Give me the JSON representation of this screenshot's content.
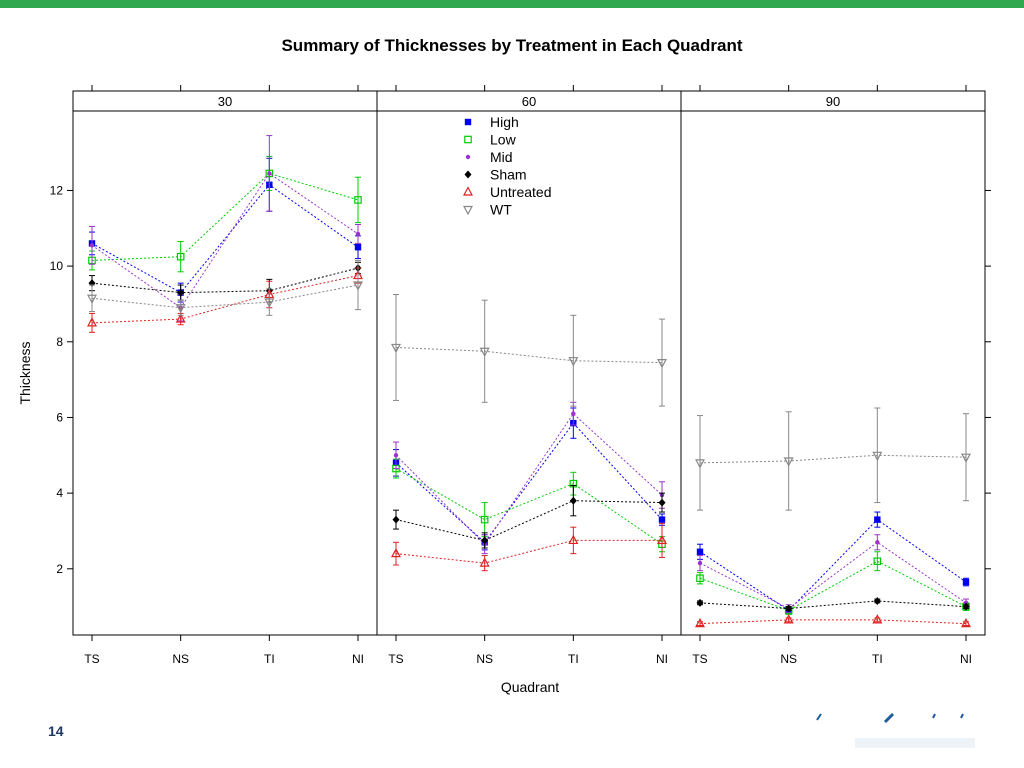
{
  "page": {
    "number": "14",
    "accent_color": "#2fa84f"
  },
  "chart_data": {
    "type": "line",
    "title": "Summary of Thicknesses by Treatment in Each Quadrant",
    "xlabel": "Quadrant",
    "ylabel": "Thickness",
    "categories": [
      "TS",
      "NS",
      "TI",
      "NI"
    ],
    "yticks": [
      2,
      4,
      6,
      8,
      10,
      12
    ],
    "ylim": [
      0.25,
      14.1
    ],
    "grid": false,
    "legend_position": "top, inside the 60 panel",
    "panels": [
      {
        "label": "30",
        "series": [
          {
            "name": "High",
            "color": "#0000ee",
            "marker": "filled-square",
            "values": [
              10.6,
              9.3,
              12.15,
              10.5
            ],
            "errors": [
              0.3,
              0.25,
              0.7,
              0.3
            ]
          },
          {
            "name": "Low",
            "color": "#00cc00",
            "marker": "open-square",
            "values": [
              10.15,
              10.25,
              12.45,
              11.75
            ],
            "errors": [
              0.25,
              0.4,
              0.45,
              0.6
            ]
          },
          {
            "name": "Mid",
            "color": "#9933cc",
            "marker": "dot",
            "values": [
              10.55,
              8.9,
              12.45,
              10.85
            ],
            "errors": [
              0.5,
              0.35,
              1.0,
              0.25
            ]
          },
          {
            "name": "Sham",
            "color": "#000000",
            "marker": "filled-diamond",
            "values": [
              9.55,
              9.3,
              9.35,
              9.95
            ],
            "errors": [
              0.2,
              0.2,
              0.3,
              0.15
            ]
          },
          {
            "name": "Untreated",
            "color": "#dd2222",
            "marker": "open-triangle-up",
            "values": [
              8.5,
              8.6,
              9.25,
              9.75
            ],
            "errors": [
              0.25,
              0.15,
              0.35,
              0.2
            ]
          },
          {
            "name": "WT",
            "color": "#888888",
            "marker": "open-triangle-down",
            "values": [
              9.15,
              8.9,
              9.05,
              9.5
            ],
            "errors": [
              0.35,
              0.2,
              0.35,
              0.65
            ]
          }
        ]
      },
      {
        "label": "60",
        "series": [
          {
            "name": "High",
            "color": "#0000ee",
            "marker": "filled-square",
            "values": [
              4.8,
              2.7,
              5.85,
              3.3
            ],
            "errors": [
              0.35,
              0.2,
              0.4,
              0.15
            ]
          },
          {
            "name": "Low",
            "color": "#00cc00",
            "marker": "open-square",
            "values": [
              4.65,
              3.3,
              4.25,
              2.65
            ],
            "errors": [
              0.25,
              0.45,
              0.3,
              0.2
            ]
          },
          {
            "name": "Mid",
            "color": "#9933cc",
            "marker": "dot",
            "values": [
              5.0,
              2.65,
              6.1,
              3.95
            ],
            "errors": [
              0.35,
              0.25,
              0.3,
              0.35
            ]
          },
          {
            "name": "Sham",
            "color": "#000000",
            "marker": "filled-diamond",
            "values": [
              3.3,
              2.75,
              3.8,
              3.75
            ],
            "errors": [
              0.25,
              0.2,
              0.4,
              0.25
            ]
          },
          {
            "name": "Untreated",
            "color": "#dd2222",
            "marker": "open-triangle-up",
            "values": [
              2.4,
              2.15,
              2.75,
              2.75
            ],
            "errors": [
              0.3,
              0.2,
              0.35,
              0.45
            ]
          },
          {
            "name": "WT",
            "color": "#888888",
            "marker": "open-triangle-down",
            "values": [
              7.85,
              7.75,
              7.5,
              7.45
            ],
            "errors": [
              1.4,
              1.35,
              1.2,
              1.15
            ]
          }
        ]
      },
      {
        "label": "90",
        "series": [
          {
            "name": "High",
            "color": "#0000ee",
            "marker": "filled-square",
            "values": [
              2.45,
              0.9,
              3.3,
              1.65
            ],
            "errors": [
              0.2,
              0.1,
              0.2,
              0.1
            ]
          },
          {
            "name": "Low",
            "color": "#00cc00",
            "marker": "open-square",
            "values": [
              1.75,
              0.9,
              2.2,
              1.0
            ],
            "errors": [
              0.15,
              0.1,
              0.25,
              0.1
            ]
          },
          {
            "name": "Mid",
            "color": "#9933cc",
            "marker": "dot",
            "values": [
              2.15,
              0.95,
              2.7,
              1.1
            ],
            "errors": [
              0.2,
              0.1,
              0.2,
              0.1
            ]
          },
          {
            "name": "Sham",
            "color": "#000000",
            "marker": "filled-diamond",
            "values": [
              1.1,
              0.95,
              1.15,
              1.0
            ],
            "errors": [
              0.05,
              0.05,
              0.05,
              0.05
            ]
          },
          {
            "name": "Untreated",
            "color": "#dd2222",
            "marker": "open-triangle-up",
            "values": [
              0.55,
              0.65,
              0.65,
              0.55
            ],
            "errors": [
              0.05,
              0.05,
              0.05,
              0.05
            ]
          },
          {
            "name": "WT",
            "color": "#888888",
            "marker": "open-triangle-down",
            "values": [
              4.8,
              4.85,
              5.0,
              4.95
            ],
            "errors": [
              1.25,
              1.3,
              1.25,
              1.15
            ]
          }
        ]
      }
    ]
  }
}
